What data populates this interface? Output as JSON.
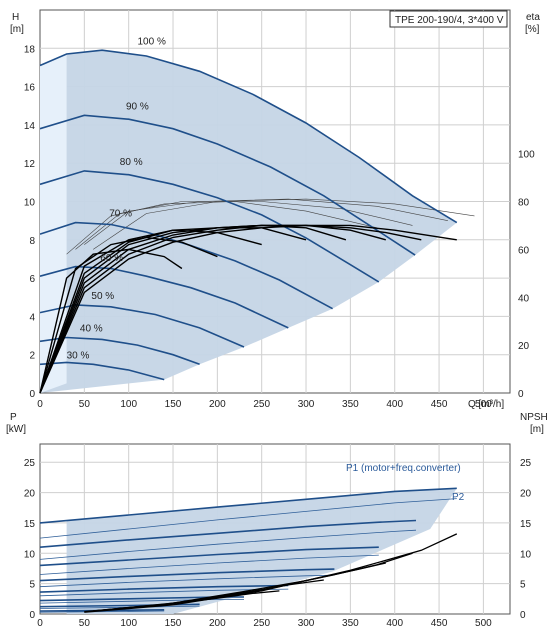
{
  "chart_data": [
    {
      "type": "line",
      "title": "TPE 200-190/4, 3*400 V",
      "xlabel": "Q [m³/h]",
      "ylabel_left_name": "H",
      "ylabel_left_unit": "[m]",
      "ylabel_right_name": "eta",
      "ylabel_right_unit": "[%]",
      "xlim": [
        0,
        530
      ],
      "ylim_left": [
        0,
        20
      ],
      "ylim_right": [
        0,
        160
      ],
      "x_ticks": [
        0,
        50,
        100,
        150,
        200,
        250,
        300,
        350,
        400,
        450,
        500
      ],
      "y_ticks_left": [
        0,
        2,
        4,
        6,
        8,
        10,
        12,
        14,
        16,
        18
      ],
      "y_ticks_right": [
        0,
        20,
        40,
        60,
        80,
        100
      ],
      "grid": true,
      "colors": {
        "curve": "#1f4f8a",
        "area": "#c5d5e6",
        "area_light": "#e6f0fa",
        "efficiency": "#000000",
        "thin_efficiency": "#444444"
      },
      "speed_curves": [
        {
          "label": "100 %",
          "x": [
            0,
            30,
            70,
            120,
            180,
            240,
            300,
            360,
            420,
            470
          ],
          "y": [
            17.1,
            17.7,
            17.9,
            17.6,
            16.8,
            15.6,
            14.1,
            12.3,
            10.3,
            8.9
          ]
        },
        {
          "label": "90 %",
          "x": [
            0,
            50,
            100,
            150,
            200,
            260,
            320,
            380,
            423
          ],
          "y": [
            13.8,
            14.5,
            14.3,
            13.8,
            13.0,
            11.8,
            10.3,
            8.5,
            7.2
          ]
        },
        {
          "label": "80 %",
          "x": [
            0,
            50,
            100,
            150,
            200,
            250,
            300,
            350,
            382
          ],
          "y": [
            10.9,
            11.6,
            11.4,
            10.9,
            10.2,
            9.3,
            8.1,
            6.7,
            5.8
          ]
        },
        {
          "label": "70 %",
          "x": [
            0,
            40,
            80,
            120,
            170,
            220,
            270,
            330
          ],
          "y": [
            8.3,
            8.9,
            8.8,
            8.4,
            7.7,
            6.9,
            5.9,
            4.4
          ]
        },
        {
          "label": "60 %",
          "x": [
            0,
            40,
            80,
            120,
            170,
            220,
            280
          ],
          "y": [
            6.1,
            6.6,
            6.5,
            6.1,
            5.5,
            4.7,
            3.4
          ]
        },
        {
          "label": "50 %",
          "x": [
            0,
            40,
            80,
            130,
            180,
            230
          ],
          "y": [
            4.2,
            4.6,
            4.5,
            4.1,
            3.4,
            2.4
          ]
        },
        {
          "label": "40 %",
          "x": [
            0,
            30,
            70,
            110,
            150,
            180
          ],
          "y": [
            2.7,
            2.9,
            2.8,
            2.5,
            2.0,
            1.5
          ]
        },
        {
          "label": "30 %",
          "x": [
            0,
            30,
            60,
            100,
            140
          ],
          "y": [
            1.5,
            1.6,
            1.5,
            1.2,
            0.7
          ]
        }
      ],
      "efficiency_curves_pct": [
        {
          "x": [
            0,
            50,
            100,
            150,
            200,
            250,
            300,
            350,
            400,
            470
          ],
          "y": [
            0,
            42,
            56,
            63,
            67,
            69,
            70,
            70,
            68,
            64
          ]
        },
        {
          "x": [
            0,
            50,
            100,
            150,
            200,
            250,
            300,
            350,
            390,
            430
          ],
          "y": [
            0,
            44,
            58,
            65,
            68,
            70,
            70,
            69,
            67,
            64
          ]
        },
        {
          "x": [
            0,
            50,
            100,
            150,
            200,
            250,
            300,
            350,
            390
          ],
          "y": [
            0,
            46,
            60,
            66,
            69,
            70,
            70,
            68,
            64
          ]
        },
        {
          "x": [
            0,
            50,
            100,
            150,
            200,
            250,
            300,
            345
          ],
          "y": [
            0,
            48,
            62,
            67,
            69,
            70,
            69,
            64
          ]
        },
        {
          "x": [
            0,
            50,
            100,
            150,
            200,
            250,
            300
          ],
          "y": [
            0,
            50,
            63,
            68,
            69,
            69,
            64
          ]
        },
        {
          "x": [
            0,
            50,
            100,
            150,
            200,
            250
          ],
          "y": [
            0,
            53,
            64,
            68,
            67,
            62
          ]
        },
        {
          "x": [
            0,
            40,
            80,
            120,
            160,
            200
          ],
          "y": [
            0,
            52,
            62,
            65,
            63,
            57
          ]
        },
        {
          "x": [
            0,
            30,
            60,
            100,
            140,
            160
          ],
          "y": [
            0,
            48,
            58,
            60,
            57,
            52
          ]
        }
      ],
      "thin_efficiency_curves_pct": [
        {
          "x": [
            60,
            120,
            200,
            300,
            400,
            490
          ],
          "y": [
            60,
            75,
            80,
            81,
            79,
            74
          ]
        },
        {
          "x": [
            50,
            100,
            180,
            280,
            380,
            460
          ],
          "y": [
            62,
            76,
            80,
            81,
            78,
            72
          ]
        },
        {
          "x": [
            40,
            90,
            160,
            250,
            340,
            420
          ],
          "y": [
            60,
            75,
            80,
            80,
            77,
            70
          ]
        },
        {
          "x": [
            30,
            80,
            140,
            220,
            300,
            380
          ],
          "y": [
            58,
            74,
            79,
            80,
            76,
            69
          ]
        }
      ]
    },
    {
      "type": "line",
      "xlabel": "Q [m³/h]",
      "ylabel_left_name": "P",
      "ylabel_left_unit": "[kW]",
      "ylabel_right_name": "NPSH",
      "ylabel_right_unit": "[m]",
      "xlim": [
        0,
        530
      ],
      "ylim_left": [
        0,
        28
      ],
      "ylim_right": [
        0,
        28
      ],
      "x_ticks": [
        0,
        50,
        100,
        150,
        200,
        250,
        300,
        350,
        400,
        450,
        500
      ],
      "y_ticks_left": [
        0,
        5,
        10,
        15,
        20,
        25
      ],
      "y_ticks_right": [
        0,
        5,
        10,
        15,
        20,
        25
      ],
      "grid": true,
      "annotations": [
        "P1 (motor+freq.converter)",
        "P2"
      ],
      "p1_curves": [
        {
          "x": [
            0,
            100,
            200,
            300,
            400,
            470
          ],
          "y": [
            15.0,
            16.3,
            17.6,
            18.9,
            20.2,
            20.7
          ]
        },
        {
          "x": [
            0,
            100,
            200,
            300,
            380,
            424
          ],
          "y": [
            11.0,
            12.2,
            13.3,
            14.4,
            15.1,
            15.4
          ]
        },
        {
          "x": [
            0,
            100,
            200,
            300,
            382
          ],
          "y": [
            8.0,
            8.9,
            9.8,
            10.6,
            11.0
          ]
        },
        {
          "x": [
            0,
            100,
            200,
            300,
            332
          ],
          "y": [
            5.5,
            6.2,
            6.8,
            7.3,
            7.4
          ]
        },
        {
          "x": [
            0,
            100,
            200,
            280
          ],
          "y": [
            3.6,
            4.1,
            4.5,
            4.7
          ]
        },
        {
          "x": [
            0,
            100,
            200,
            230
          ],
          "y": [
            2.2,
            2.5,
            2.8,
            2.8
          ]
        },
        {
          "x": [
            0,
            100,
            180
          ],
          "y": [
            1.2,
            1.4,
            1.6
          ]
        },
        {
          "x": [
            0,
            80,
            140
          ],
          "y": [
            0.5,
            0.6,
            0.7
          ]
        }
      ],
      "p2_curves": [
        {
          "x": [
            0,
            100,
            200,
            300,
            400,
            470
          ],
          "y": [
            12.5,
            14.0,
            15.5,
            16.9,
            18.3,
            19.0
          ]
        },
        {
          "x": [
            0,
            100,
            200,
            300,
            400,
            424
          ],
          "y": [
            9.0,
            10.3,
            11.5,
            12.6,
            13.6,
            13.8
          ]
        },
        {
          "x": [
            0,
            100,
            200,
            300,
            382
          ],
          "y": [
            6.5,
            7.5,
            8.4,
            9.2,
            9.7
          ]
        },
        {
          "x": [
            0,
            100,
            200,
            300,
            332
          ],
          "y": [
            4.5,
            5.2,
            5.8,
            6.3,
            6.4
          ]
        },
        {
          "x": [
            0,
            100,
            200,
            280
          ],
          "y": [
            3.0,
            3.5,
            3.9,
            4.1
          ]
        },
        {
          "x": [
            0,
            100,
            200,
            230
          ],
          "y": [
            1.8,
            2.1,
            2.4,
            2.4
          ]
        },
        {
          "x": [
            0,
            100,
            180
          ],
          "y": [
            0.9,
            1.1,
            1.3
          ]
        },
        {
          "x": [
            0,
            80,
            140
          ],
          "y": [
            0.3,
            0.4,
            0.5
          ]
        }
      ],
      "npsh_curves": [
        {
          "x": [
            50,
            150,
            250,
            350,
            430,
            470
          ],
          "y": [
            0.3,
            1.5,
            3.8,
            7.2,
            10.5,
            13.2
          ]
        },
        {
          "x": [
            50,
            150,
            250,
            330,
            380,
            420
          ],
          "y": [
            0.4,
            1.7,
            4.0,
            6.4,
            8.1,
            10.0
          ]
        },
        {
          "x": [
            60,
            150,
            230,
            300,
            360,
            390
          ],
          "y": [
            0.5,
            1.8,
            3.7,
            5.5,
            7.4,
            8.4
          ]
        },
        {
          "x": [
            60,
            140,
            220,
            280,
            320
          ],
          "y": [
            0.5,
            1.6,
            3.2,
            4.8,
            5.6
          ]
        },
        {
          "x": [
            60,
            130,
            200,
            240,
            270
          ],
          "y": [
            0.5,
            1.4,
            2.6,
            3.4,
            3.8
          ]
        }
      ]
    }
  ]
}
